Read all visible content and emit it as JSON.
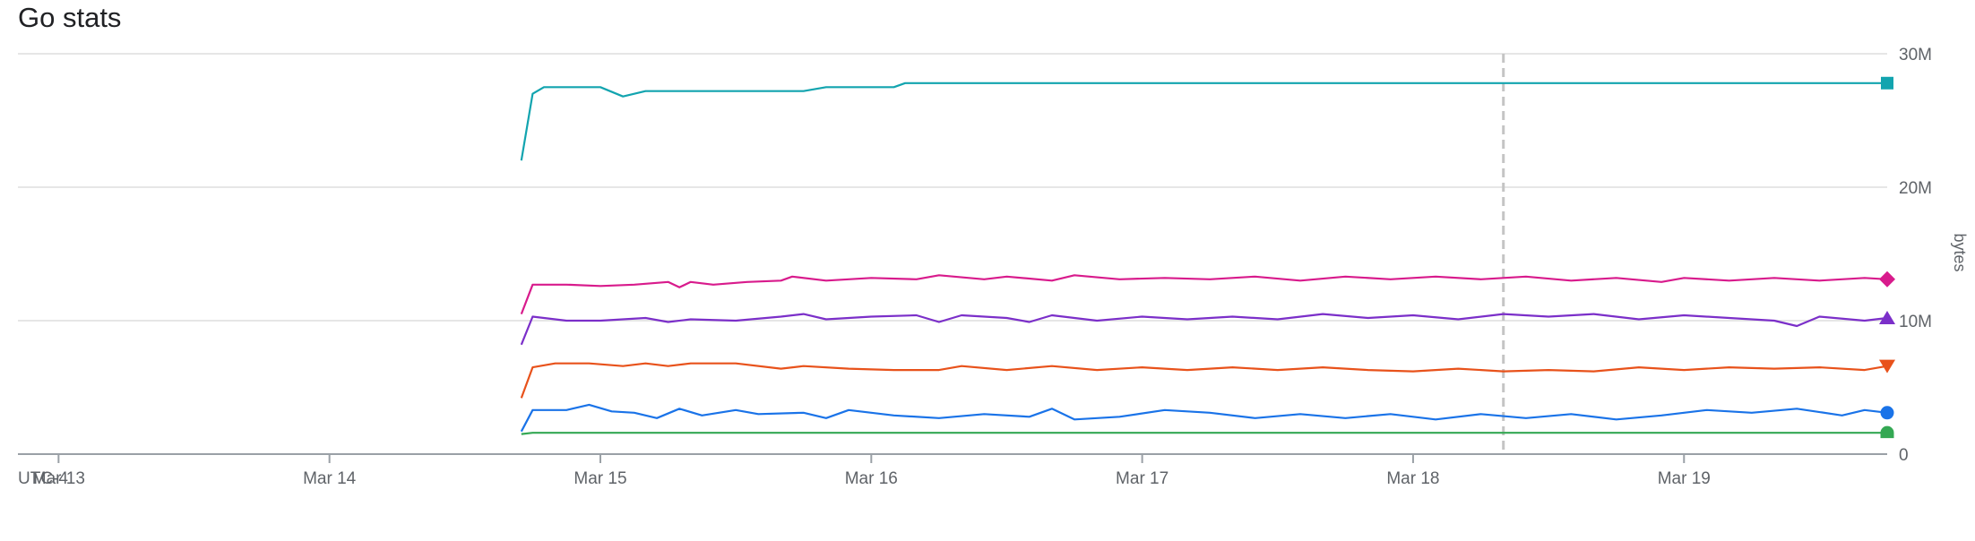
{
  "header": {
    "title": "Go stats"
  },
  "chart_data": {
    "type": "line",
    "title": "Go stats",
    "ylabel": "bytes",
    "timezone_label": "UTC-4",
    "ylim": [
      0,
      30000000
    ],
    "y_ticks": [
      {
        "value": 0,
        "label": "0"
      },
      {
        "value": 10000000,
        "label": "10M"
      },
      {
        "value": 20000000,
        "label": "20M"
      },
      {
        "value": 30000000,
        "label": "30M"
      }
    ],
    "x_range": [
      "2024-03-12T20:24",
      "2024-03-19T18:00"
    ],
    "x_ticks": [
      {
        "value": "2024-03-13T00:00",
        "label": "Mar 13"
      },
      {
        "value": "2024-03-14T00:00",
        "label": "Mar 14"
      },
      {
        "value": "2024-03-15T00:00",
        "label": "Mar 15"
      },
      {
        "value": "2024-03-16T00:00",
        "label": "Mar 16"
      },
      {
        "value": "2024-03-17T00:00",
        "label": "Mar 17"
      },
      {
        "value": "2024-03-18T00:00",
        "label": "Mar 18"
      },
      {
        "value": "2024-03-19T00:00",
        "label": "Mar 19"
      }
    ],
    "cursor_x": "2024-03-18T08:00",
    "grid": true,
    "series": [
      {
        "color": "#12A4AF",
        "marker": "square",
        "points": [
          [
            "2024-03-14T17:00",
            22000000
          ],
          [
            "2024-03-14T18:00",
            27000000
          ],
          [
            "2024-03-14T19:00",
            27500000
          ],
          [
            "2024-03-15T00:00",
            27500000
          ],
          [
            "2024-03-15T02:00",
            26800000
          ],
          [
            "2024-03-15T04:00",
            27200000
          ],
          [
            "2024-03-15T12:00",
            27200000
          ],
          [
            "2024-03-15T18:00",
            27200000
          ],
          [
            "2024-03-15T20:00",
            27500000
          ],
          [
            "2024-03-16T00:00",
            27500000
          ],
          [
            "2024-03-16T02:00",
            27500000
          ],
          [
            "2024-03-16T03:00",
            27800000
          ],
          [
            "2024-03-17T00:00",
            27800000
          ],
          [
            "2024-03-18T00:00",
            27800000
          ],
          [
            "2024-03-19T00:00",
            27800000
          ],
          [
            "2024-03-19T18:00",
            27800000
          ]
        ]
      },
      {
        "color": "#D81B8C",
        "marker": "diamond",
        "points": [
          [
            "2024-03-14T17:00",
            10500000
          ],
          [
            "2024-03-14T18:00",
            12700000
          ],
          [
            "2024-03-14T21:00",
            12700000
          ],
          [
            "2024-03-15T00:00",
            12600000
          ],
          [
            "2024-03-15T03:00",
            12700000
          ],
          [
            "2024-03-15T06:00",
            12900000
          ],
          [
            "2024-03-15T07:00",
            12500000
          ],
          [
            "2024-03-15T08:00",
            12900000
          ],
          [
            "2024-03-15T10:00",
            12700000
          ],
          [
            "2024-03-15T13:00",
            12900000
          ],
          [
            "2024-03-15T16:00",
            13000000
          ],
          [
            "2024-03-15T17:00",
            13300000
          ],
          [
            "2024-03-15T20:00",
            13000000
          ],
          [
            "2024-03-16T00:00",
            13200000
          ],
          [
            "2024-03-16T04:00",
            13100000
          ],
          [
            "2024-03-16T06:00",
            13400000
          ],
          [
            "2024-03-16T10:00",
            13100000
          ],
          [
            "2024-03-16T12:00",
            13300000
          ],
          [
            "2024-03-16T16:00",
            13000000
          ],
          [
            "2024-03-16T18:00",
            13400000
          ],
          [
            "2024-03-16T22:00",
            13100000
          ],
          [
            "2024-03-17T02:00",
            13200000
          ],
          [
            "2024-03-17T06:00",
            13100000
          ],
          [
            "2024-03-17T10:00",
            13300000
          ],
          [
            "2024-03-17T14:00",
            13000000
          ],
          [
            "2024-03-17T18:00",
            13300000
          ],
          [
            "2024-03-17T22:00",
            13100000
          ],
          [
            "2024-03-18T02:00",
            13300000
          ],
          [
            "2024-03-18T06:00",
            13100000
          ],
          [
            "2024-03-18T10:00",
            13300000
          ],
          [
            "2024-03-18T14:00",
            13000000
          ],
          [
            "2024-03-18T18:00",
            13200000
          ],
          [
            "2024-03-18T22:00",
            12900000
          ],
          [
            "2024-03-19T00:00",
            13200000
          ],
          [
            "2024-03-19T04:00",
            13000000
          ],
          [
            "2024-03-19T08:00",
            13200000
          ],
          [
            "2024-03-19T12:00",
            13000000
          ],
          [
            "2024-03-19T16:00",
            13200000
          ],
          [
            "2024-03-19T18:00",
            13100000
          ]
        ]
      },
      {
        "color": "#7B2FC9",
        "marker": "triangle-up",
        "points": [
          [
            "2024-03-14T17:00",
            8200000
          ],
          [
            "2024-03-14T18:00",
            10300000
          ],
          [
            "2024-03-14T21:00",
            10000000
          ],
          [
            "2024-03-15T00:00",
            10000000
          ],
          [
            "2024-03-15T04:00",
            10200000
          ],
          [
            "2024-03-15T06:00",
            9900000
          ],
          [
            "2024-03-15T08:00",
            10100000
          ],
          [
            "2024-03-15T12:00",
            10000000
          ],
          [
            "2024-03-15T16:00",
            10300000
          ],
          [
            "2024-03-15T18:00",
            10500000
          ],
          [
            "2024-03-15T20:00",
            10100000
          ],
          [
            "2024-03-16T00:00",
            10300000
          ],
          [
            "2024-03-16T04:00",
            10400000
          ],
          [
            "2024-03-16T06:00",
            9900000
          ],
          [
            "2024-03-16T08:00",
            10400000
          ],
          [
            "2024-03-16T12:00",
            10200000
          ],
          [
            "2024-03-16T14:00",
            9900000
          ],
          [
            "2024-03-16T16:00",
            10400000
          ],
          [
            "2024-03-16T20:00",
            10000000
          ],
          [
            "2024-03-17T00:00",
            10300000
          ],
          [
            "2024-03-17T04:00",
            10100000
          ],
          [
            "2024-03-17T08:00",
            10300000
          ],
          [
            "2024-03-17T12:00",
            10100000
          ],
          [
            "2024-03-17T16:00",
            10500000
          ],
          [
            "2024-03-17T20:00",
            10200000
          ],
          [
            "2024-03-18T00:00",
            10400000
          ],
          [
            "2024-03-18T04:00",
            10100000
          ],
          [
            "2024-03-18T08:00",
            10500000
          ],
          [
            "2024-03-18T12:00",
            10300000
          ],
          [
            "2024-03-18T16:00",
            10500000
          ],
          [
            "2024-03-18T20:00",
            10100000
          ],
          [
            "2024-03-19T00:00",
            10400000
          ],
          [
            "2024-03-19T04:00",
            10200000
          ],
          [
            "2024-03-19T08:00",
            10000000
          ],
          [
            "2024-03-19T10:00",
            9600000
          ],
          [
            "2024-03-19T12:00",
            10300000
          ],
          [
            "2024-03-19T16:00",
            10000000
          ],
          [
            "2024-03-19T18:00",
            10200000
          ]
        ]
      },
      {
        "color": "#E8521B",
        "marker": "triangle-down",
        "points": [
          [
            "2024-03-14T17:00",
            4200000
          ],
          [
            "2024-03-14T18:00",
            6500000
          ],
          [
            "2024-03-14T20:00",
            6800000
          ],
          [
            "2024-03-14T23:00",
            6800000
          ],
          [
            "2024-03-15T02:00",
            6600000
          ],
          [
            "2024-03-15T04:00",
            6800000
          ],
          [
            "2024-03-15T06:00",
            6600000
          ],
          [
            "2024-03-15T08:00",
            6800000
          ],
          [
            "2024-03-15T12:00",
            6800000
          ],
          [
            "2024-03-15T16:00",
            6400000
          ],
          [
            "2024-03-15T18:00",
            6600000
          ],
          [
            "2024-03-15T22:00",
            6400000
          ],
          [
            "2024-03-16T02:00",
            6300000
          ],
          [
            "2024-03-16T06:00",
            6300000
          ],
          [
            "2024-03-16T08:00",
            6600000
          ],
          [
            "2024-03-16T12:00",
            6300000
          ],
          [
            "2024-03-16T16:00",
            6600000
          ],
          [
            "2024-03-16T20:00",
            6300000
          ],
          [
            "2024-03-17T00:00",
            6500000
          ],
          [
            "2024-03-17T04:00",
            6300000
          ],
          [
            "2024-03-17T08:00",
            6500000
          ],
          [
            "2024-03-17T12:00",
            6300000
          ],
          [
            "2024-03-17T16:00",
            6500000
          ],
          [
            "2024-03-17T20:00",
            6300000
          ],
          [
            "2024-03-18T00:00",
            6200000
          ],
          [
            "2024-03-18T04:00",
            6400000
          ],
          [
            "2024-03-18T08:00",
            6200000
          ],
          [
            "2024-03-18T12:00",
            6300000
          ],
          [
            "2024-03-18T16:00",
            6200000
          ],
          [
            "2024-03-18T20:00",
            6500000
          ],
          [
            "2024-03-19T00:00",
            6300000
          ],
          [
            "2024-03-19T04:00",
            6500000
          ],
          [
            "2024-03-19T08:00",
            6400000
          ],
          [
            "2024-03-19T12:00",
            6500000
          ],
          [
            "2024-03-19T16:00",
            6300000
          ],
          [
            "2024-03-19T18:00",
            6600000
          ]
        ]
      },
      {
        "color": "#1A73E8",
        "marker": "circle",
        "points": [
          [
            "2024-03-14T17:00",
            1700000
          ],
          [
            "2024-03-14T18:00",
            3300000
          ],
          [
            "2024-03-14T21:00",
            3300000
          ],
          [
            "2024-03-14T23:00",
            3700000
          ],
          [
            "2024-03-15T01:00",
            3200000
          ],
          [
            "2024-03-15T03:00",
            3100000
          ],
          [
            "2024-03-15T05:00",
            2700000
          ],
          [
            "2024-03-15T07:00",
            3400000
          ],
          [
            "2024-03-15T09:00",
            2900000
          ],
          [
            "2024-03-15T12:00",
            3300000
          ],
          [
            "2024-03-15T14:00",
            3000000
          ],
          [
            "2024-03-15T18:00",
            3100000
          ],
          [
            "2024-03-15T20:00",
            2700000
          ],
          [
            "2024-03-15T22:00",
            3300000
          ],
          [
            "2024-03-16T02:00",
            2900000
          ],
          [
            "2024-03-16T06:00",
            2700000
          ],
          [
            "2024-03-16T10:00",
            3000000
          ],
          [
            "2024-03-16T14:00",
            2800000
          ],
          [
            "2024-03-16T16:00",
            3400000
          ],
          [
            "2024-03-16T18:00",
            2600000
          ],
          [
            "2024-03-16T22:00",
            2800000
          ],
          [
            "2024-03-17T02:00",
            3300000
          ],
          [
            "2024-03-17T06:00",
            3100000
          ],
          [
            "2024-03-17T10:00",
            2700000
          ],
          [
            "2024-03-17T14:00",
            3000000
          ],
          [
            "2024-03-17T18:00",
            2700000
          ],
          [
            "2024-03-17T22:00",
            3000000
          ],
          [
            "2024-03-18T02:00",
            2600000
          ],
          [
            "2024-03-18T06:00",
            3000000
          ],
          [
            "2024-03-18T10:00",
            2700000
          ],
          [
            "2024-03-18T14:00",
            3000000
          ],
          [
            "2024-03-18T18:00",
            2600000
          ],
          [
            "2024-03-18T22:00",
            2900000
          ],
          [
            "2024-03-19T02:00",
            3300000
          ],
          [
            "2024-03-19T06:00",
            3100000
          ],
          [
            "2024-03-19T10:00",
            3400000
          ],
          [
            "2024-03-19T14:00",
            2900000
          ],
          [
            "2024-03-19T16:00",
            3300000
          ],
          [
            "2024-03-19T18:00",
            3100000
          ]
        ]
      },
      {
        "color": "#34A853",
        "marker": "semicircle",
        "points": [
          [
            "2024-03-14T17:00",
            1500000
          ],
          [
            "2024-03-14T18:00",
            1600000
          ],
          [
            "2024-03-16T00:00",
            1600000
          ],
          [
            "2024-03-18T00:00",
            1600000
          ],
          [
            "2024-03-19T18:00",
            1600000
          ]
        ]
      }
    ]
  }
}
